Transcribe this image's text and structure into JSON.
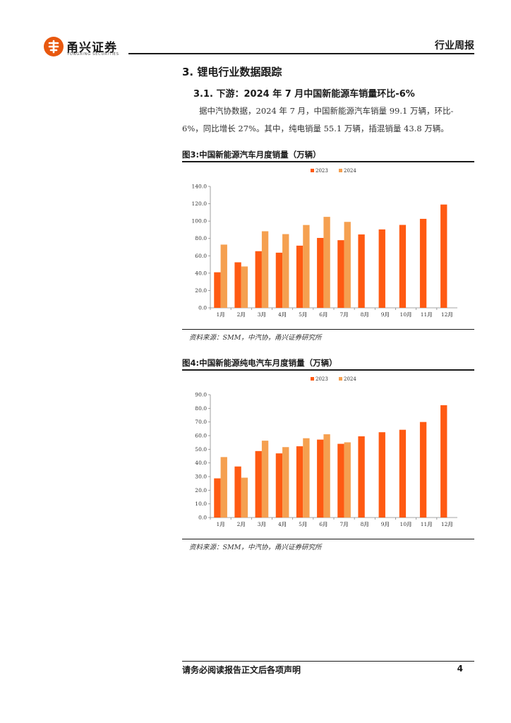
{
  "header": {
    "logo_name": "甬兴证券",
    "logo_sub": "YONGXING SECURITIES",
    "doc_type": "行业周报"
  },
  "section": {
    "title": "3. 锂电行业数据跟踪",
    "subtitle": "3.1. 下游：2024 年 7 月中国新能源车销量环比-6%",
    "paragraph_line1": "据中汽协数据，2024 年 7 月，中国新能源汽车销量 99.1 万辆，环比-",
    "paragraph_line2": "6%，同比增长 27%。其中，纯电销量 55.1 万辆，插混销量 43.8 万辆。"
  },
  "figures": [
    {
      "title": "图3:中国新能源汽车月度销量（万辆）",
      "source": "资料来源：SMM，中汽协，甬兴证券研究所"
    },
    {
      "title": "图4:中国新能源纯电汽车月度销量（万辆）",
      "source": "资料来源：SMM，中汽协，甬兴证券研究所"
    }
  ],
  "colors": {
    "series_2023": "#ff5a12",
    "series_2024": "#f5a050",
    "brand": "#e8580f"
  },
  "chart_data": [
    {
      "type": "bar",
      "categories": [
        "1月",
        "2月",
        "3月",
        "4月",
        "5月",
        "6月",
        "7月",
        "8月",
        "9月",
        "10月",
        "11月",
        "12月"
      ],
      "series": [
        {
          "name": "2023",
          "values": [
            41.0,
            52.5,
            65.3,
            63.6,
            71.7,
            80.6,
            78.0,
            84.6,
            90.4,
            95.6,
            102.6,
            119.1
          ]
        },
        {
          "name": "2024",
          "values": [
            72.9,
            47.7,
            88.3,
            85.0,
            95.5,
            104.9,
            99.1,
            null,
            null,
            null,
            null,
            null
          ]
        }
      ],
      "ylim": [
        0,
        140
      ],
      "yticks": [
        0,
        20,
        40,
        60,
        80,
        100,
        120,
        140
      ],
      "ytick_labels": [
        "0.0",
        "20.0",
        "40.0",
        "60.0",
        "80.0",
        "100.0",
        "120.0",
        "140.0"
      ],
      "legend_position": "top-center",
      "grid": false
    },
    {
      "type": "bar",
      "categories": [
        "1月",
        "2月",
        "3月",
        "4月",
        "5月",
        "6月",
        "7月",
        "8月",
        "9月",
        "10月",
        "11月",
        "12月"
      ],
      "series": [
        {
          "name": "2023",
          "values": [
            28.7,
            37.4,
            48.7,
            47.0,
            52.2,
            57.1,
            54.0,
            59.5,
            62.5,
            64.3,
            70.0,
            82.3
          ]
        },
        {
          "name": "2024",
          "values": [
            44.3,
            29.2,
            56.3,
            51.6,
            58.1,
            61.0,
            55.1,
            null,
            null,
            null,
            null,
            null
          ]
        }
      ],
      "ylim": [
        0,
        90
      ],
      "yticks": [
        0,
        10,
        20,
        30,
        40,
        50,
        60,
        70,
        80,
        90
      ],
      "ytick_labels": [
        "0.0",
        "10.0",
        "20.0",
        "30.0",
        "40.0",
        "50.0",
        "60.0",
        "70.0",
        "80.0",
        "90.0"
      ],
      "legend_position": "top-center",
      "grid": false
    }
  ],
  "footer": {
    "disclaimer": "请务必阅读报告正文后各项声明",
    "page": "4"
  }
}
